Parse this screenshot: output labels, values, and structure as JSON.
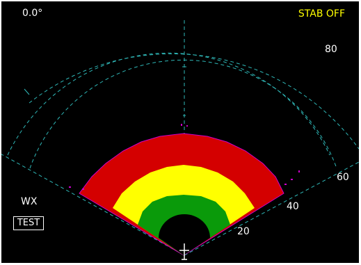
{
  "display": {
    "tilt": "0.0°",
    "stab": "STAB OFF",
    "mode": "WX",
    "test_label": "TEST",
    "range_labels": {
      "outer": "80",
      "ring3": "60",
      "ring2": "40",
      "ring1": "20"
    }
  },
  "colors": {
    "background": "#000000",
    "range_rings": "#2fb8b8",
    "stab_text": "#ffff00",
    "label_text": "#ffffff",
    "band_outer": "#d40000",
    "band_middle": "#ffff00",
    "band_inner": "#0a9a0a",
    "band_edge": "#cc00cc",
    "aircraft_symbol": "#ffffff"
  },
  "weather_pattern": {
    "bands": [
      "red",
      "yellow",
      "green"
    ],
    "hole": "black"
  },
  "icons": {
    "aircraft": "aircraft-symbol-icon"
  }
}
